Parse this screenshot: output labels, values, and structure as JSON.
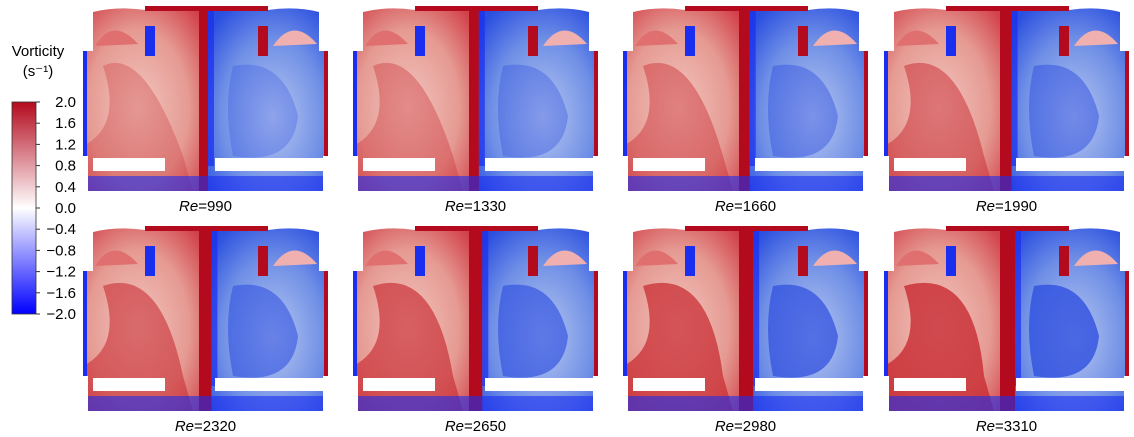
{
  "colorbar": {
    "title": "Vorticity",
    "unit": "(s⁻¹)",
    "range": [
      -2,
      2
    ],
    "colors": [
      "#0000ff",
      "#ffffff",
      "#b40a1e"
    ],
    "ticks": [
      {
        "value": 2,
        "label": "2.0"
      },
      {
        "value": 1.6,
        "label": "1.6"
      },
      {
        "value": 1.2,
        "label": "1.2"
      },
      {
        "value": 0.8,
        "label": "0.8"
      },
      {
        "value": 0.4,
        "label": "0.4"
      },
      {
        "value": 0,
        "label": "0.0"
      },
      {
        "value": -0.4,
        "label": "−0.4"
      },
      {
        "value": -0.8,
        "label": "−0.8"
      },
      {
        "value": -1.2,
        "label": "−1.2"
      },
      {
        "value": -1.6,
        "label": "−1.6"
      },
      {
        "value": -2,
        "label": "−2.0"
      }
    ]
  },
  "panels": [
    {
      "label": "Re=990"
    },
    {
      "label": "Re=1330"
    },
    {
      "label": "Re=1660"
    },
    {
      "label": "Re=1990"
    },
    {
      "label": "Re=2320"
    },
    {
      "label": "Re=2650"
    },
    {
      "label": "Re=2980"
    },
    {
      "label": "Re=3310"
    }
  ]
}
